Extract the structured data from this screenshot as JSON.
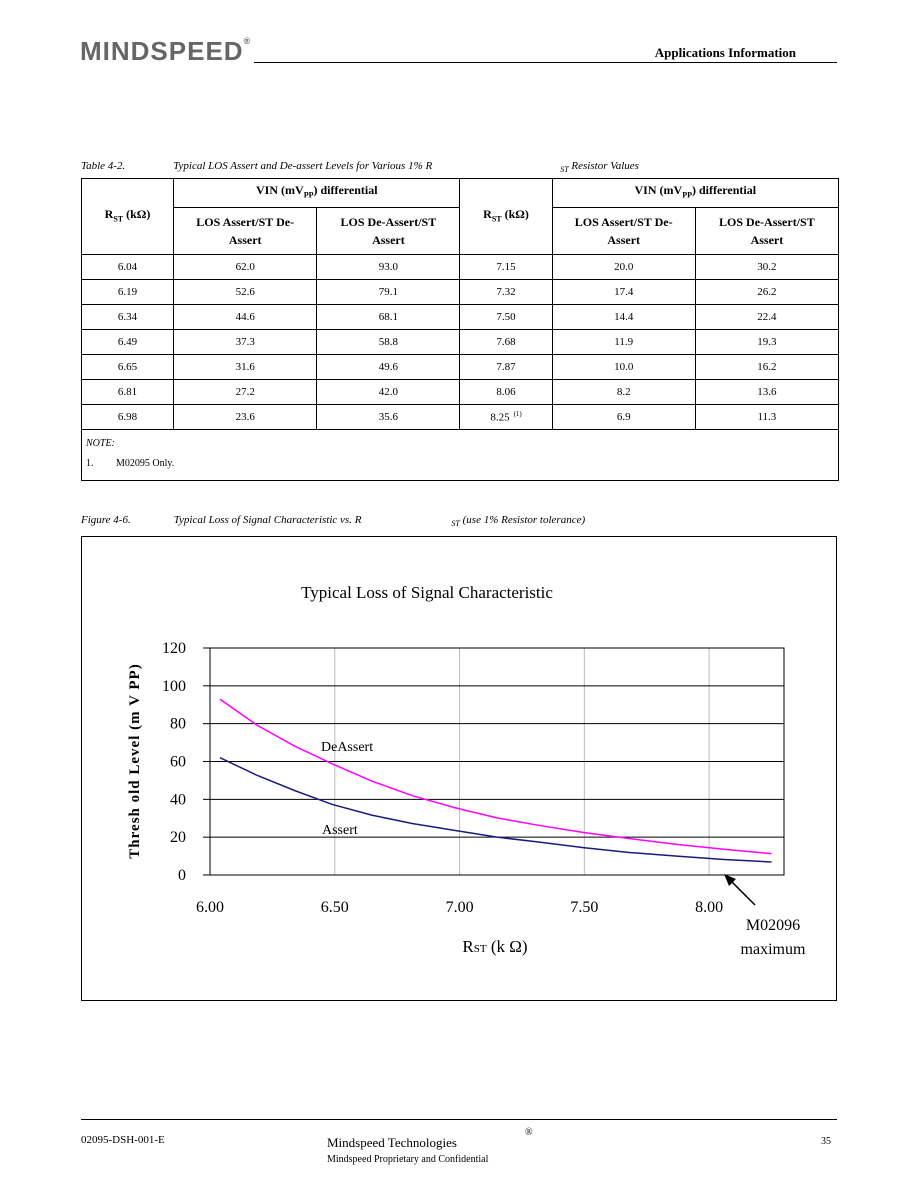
{
  "header": {
    "logo": "MINDSPEED",
    "logo_mark": "®",
    "section": "Applications Information"
  },
  "table": {
    "caption": {
      "number": "Table 4-2.",
      "title": "Typical LOS Assert and De-assert Levels for Various 1% R",
      "subscript": "ST",
      "title_end": "Resistor Values"
    },
    "headers": {
      "rst": {
        "text": "R",
        "sub": "ST",
        "unit": "(kΩ)"
      },
      "vin": {
        "text": "VIN (mV",
        "sub": "PP",
        "end": ") differential"
      },
      "assert": "LOS Assert/ST De-Assert",
      "deassert": "LOS De-Assert/ST Assert"
    },
    "rows": [
      [
        "6.04",
        "62.0",
        "93.0",
        "7.15",
        "20.0",
        "30.2"
      ],
      [
        "6.19",
        "52.6",
        "79.1",
        "7.32",
        "17.4",
        "26.2"
      ],
      [
        "6.34",
        "44.6",
        "68.1",
        "7.50",
        "14.4",
        "22.4"
      ],
      [
        "6.49",
        "37.3",
        "58.8",
        "7.68",
        "11.9",
        "19.3"
      ],
      [
        "6.65",
        "31.6",
        "49.6",
        "7.87",
        "10.0",
        "16.2"
      ],
      [
        "6.81",
        "27.2",
        "42.0",
        "8.06",
        "8.2",
        "13.6"
      ],
      [
        "6.98",
        "23.6",
        "35.6",
        "8.25",
        "6.9",
        "11.3"
      ]
    ],
    "footnote_mark": "(1)",
    "note": {
      "label": "NOTE:",
      "items": [
        {
          "number": "1.",
          "text": "M02095 Only."
        }
      ]
    }
  },
  "figure": {
    "caption": {
      "number": "Figure 4-6.",
      "title": "Typical Loss of Signal Characteristic vs. R",
      "subscript": "ST",
      "title_end": "(use 1% Resistor tolerance)"
    }
  },
  "chart_data": {
    "type": "line",
    "title": "Typical Loss of Signal Characteristic",
    "y_label": "Thresh old Level (m V PP)",
    "x_label": "R",
    "x_label_sub": "ST",
    "x_label_end": "(k Ω)",
    "x": [
      6.04,
      6.19,
      6.34,
      6.49,
      6.65,
      6.81,
      6.98,
      7.15,
      7.32,
      7.5,
      7.68,
      7.87,
      8.06,
      8.25
    ],
    "series": [
      {
        "name": "DeAssert",
        "color": "#ff00ff",
        "values": [
          93,
          79.1,
          68.1,
          58.8,
          49.6,
          42,
          35.6,
          30.2,
          26.2,
          22.4,
          19.3,
          16.2,
          13.6,
          11.3
        ]
      },
      {
        "name": "Assert",
        "color": "#1a1a80",
        "values": [
          62,
          52.6,
          44.6,
          37.3,
          31.6,
          27.2,
          23.6,
          20,
          17.4,
          14.4,
          11.9,
          10,
          8.2,
          6.9
        ]
      }
    ],
    "xlim": [
      6.0,
      8.3
    ],
    "xticks": [
      {
        "value": 6,
        "label": "6.00"
      },
      {
        "value": 6.5,
        "label": "6.50"
      },
      {
        "value": 7,
        "label": "7.00"
      },
      {
        "value": 7.5,
        "label": "7.50"
      },
      {
        "value": 8,
        "label": "8.00"
      }
    ],
    "ylim": [
      0,
      120
    ],
    "yticks": [
      0,
      20,
      40,
      60,
      80,
      100,
      120
    ],
    "grid": true,
    "annotations": [
      "M02096",
      "maximum"
    ]
  },
  "footer": {
    "doc_id": "02095-DSH-001-E",
    "company": "Mindspeed Technologies",
    "company_mark": "®",
    "confidential": "Mindspeed Proprietary and Confidential",
    "page": "35"
  }
}
